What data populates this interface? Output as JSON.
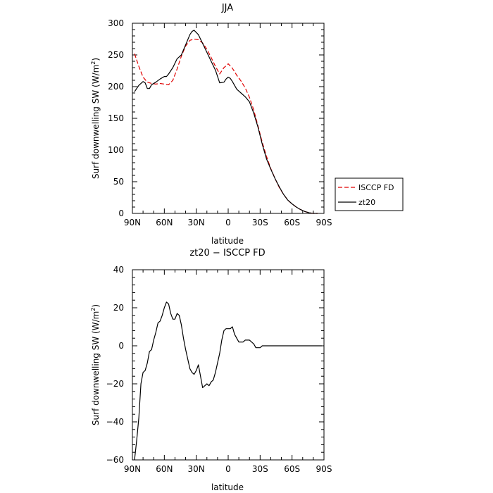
{
  "chart_data": [
    {
      "type": "line",
      "title": "JJA",
      "xlabel": "latitude",
      "ylabel": "Surf downwelling SW (W/m²)",
      "ylabel_main": "Surf downwelling SW (W/m",
      "ylabel_sup": "2",
      "ylabel_tail": ")",
      "xlim": [
        90,
        -90
      ],
      "ylim": [
        0,
        300
      ],
      "x_ticks": [
        90,
        60,
        30,
        0,
        -30,
        -60,
        -90
      ],
      "x_tick_labels": [
        "90N",
        "60N",
        "30N",
        "0",
        "30S",
        "60S",
        "90S"
      ],
      "y_ticks": [
        0,
        50,
        100,
        150,
        200,
        250,
        300
      ],
      "y_tick_labels": [
        "0",
        "50",
        "100",
        "150",
        "200",
        "250",
        "300"
      ],
      "grid": false,
      "legend": "right, outside plot",
      "series": [
        {
          "name": "ISCCP FD",
          "color": "#e00000",
          "dash": "dashed",
          "x": [
            88,
            84,
            80,
            76,
            72,
            68,
            64,
            60,
            56,
            52,
            48,
            44,
            40,
            36,
            32,
            28,
            24,
            20,
            16,
            12,
            8,
            4,
            0,
            -4,
            -8,
            -12,
            -16,
            -20,
            -24,
            -28,
            -32,
            -36,
            -40,
            -44,
            -48,
            -52,
            -56,
            -60,
            -64,
            -68,
            -72,
            -76,
            -80,
            -84
          ],
          "y": [
            252,
            232,
            215,
            207,
            205,
            204,
            205,
            204,
            203,
            210,
            228,
            248,
            264,
            273,
            275,
            274,
            269,
            259,
            246,
            232,
            220,
            230,
            236,
            229,
            218,
            209,
            198,
            183,
            163,
            138,
            112,
            90,
            71,
            55,
            41,
            30,
            21,
            15,
            10,
            6,
            3,
            1,
            0,
            0
          ]
        },
        {
          "name": "zt20",
          "color": "#000000",
          "dash": "solid",
          "x": [
            88,
            84,
            80,
            78,
            76,
            74,
            72,
            68,
            64,
            60,
            58,
            56,
            52,
            48,
            44,
            40,
            36,
            34,
            32,
            28,
            24,
            20,
            16,
            12,
            8,
            4,
            2,
            0,
            -2,
            -4,
            -8,
            -12,
            -16,
            -20,
            -24,
            -28,
            -32,
            -36,
            -40,
            -44,
            -48,
            -52,
            -56,
            -60,
            -64,
            -68,
            -72,
            -76,
            -80,
            -84
          ],
          "y": [
            192,
            202,
            208,
            206,
            197,
            197,
            203,
            207,
            212,
            216,
            216,
            220,
            230,
            244,
            250,
            266,
            282,
            287,
            289,
            282,
            268,
            254,
            240,
            226,
            206,
            207,
            212,
            215,
            213,
            208,
            196,
            190,
            184,
            176,
            158,
            136,
            109,
            86,
            70,
            55,
            42,
            30,
            21,
            15,
            10,
            6,
            3,
            1,
            0,
            0
          ]
        }
      ]
    },
    {
      "type": "line",
      "title": "zt20 − ISCCP FD",
      "xlabel": "latitude",
      "ylabel": "Surf downwelling SW (W/m²)",
      "ylabel_main": "Surf downwelling SW (W/m",
      "ylabel_sup": "2",
      "ylabel_tail": ")",
      "xlim": [
        90,
        -90
      ],
      "ylim": [
        -60,
        40
      ],
      "x_ticks": [
        90,
        60,
        30,
        0,
        -30,
        -60,
        -90
      ],
      "x_tick_labels": [
        "90N",
        "60N",
        "30N",
        "0",
        "30S",
        "60S",
        "90S"
      ],
      "y_ticks": [
        -60,
        -40,
        -20,
        0,
        20,
        40
      ],
      "y_tick_labels": [
        "−60",
        "−40",
        "−20",
        "0",
        "20",
        "40"
      ],
      "grid": false,
      "series": [
        {
          "name": "",
          "color": "#000000",
          "dash": "solid",
          "x": [
            88,
            86,
            84,
            82,
            80,
            78,
            76,
            74,
            72,
            70,
            68,
            66,
            64,
            62,
            60,
            58,
            56,
            54,
            52,
            50,
            48,
            46,
            44,
            42,
            40,
            38,
            36,
            34,
            32,
            30,
            28,
            26,
            24,
            22,
            20,
            18,
            16,
            14,
            12,
            10,
            8,
            6,
            4,
            2,
            0,
            -2,
            -4,
            -6,
            -8,
            -10,
            -12,
            -14,
            -16,
            -18,
            -20,
            -22,
            -24,
            -26,
            -28,
            -30,
            -32,
            -34,
            -36,
            -38,
            -40,
            -42,
            -44,
            -46,
            -48,
            -50,
            -52,
            -54,
            -56,
            -58,
            -60,
            -62,
            -64,
            -66,
            -68,
            -70,
            -72,
            -74,
            -76,
            -78,
            -80,
            -82,
            -84,
            -86,
            -88
          ],
          "y": [
            -60,
            -50,
            -38,
            -20,
            -14,
            -13,
            -9,
            -3,
            -2,
            3,
            7,
            12,
            13,
            16,
            20,
            23,
            22,
            17,
            14,
            14,
            17,
            16,
            11,
            4,
            -2,
            -7,
            -12,
            -14,
            -15,
            -13,
            -10,
            -16,
            -22,
            -21,
            -20,
            -21,
            -19,
            -18,
            -14,
            -9,
            -4,
            3,
            8,
            9,
            9,
            9,
            10,
            6,
            4,
            2,
            2,
            2,
            3,
            3,
            3,
            2,
            1,
            -1,
            -1,
            -1,
            0,
            0,
            0,
            0,
            0,
            0,
            0,
            0,
            0,
            0,
            0,
            0,
            0,
            0,
            0,
            0,
            0,
            0,
            0,
            0,
            0,
            0,
            0,
            0,
            0,
            0,
            0,
            0,
            0
          ]
        }
      ]
    }
  ]
}
